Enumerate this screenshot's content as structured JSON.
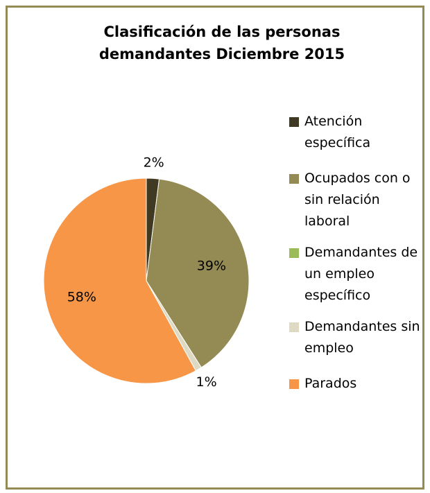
{
  "chart_data": {
    "type": "pie",
    "title": "Clasificación de las personas demandantes Diciembre 2015",
    "categories": [
      "Atención específica",
      "Ocupados con o sin relación laboral",
      "Demandantes de un empleo específico",
      "Demandantes sin empleo",
      "Parados"
    ],
    "values": [
      2,
      39,
      0,
      1,
      58
    ],
    "value_labels": [
      "2%",
      "39%",
      null,
      "1%",
      "58%"
    ],
    "colors": [
      "#403a22",
      "#948a54",
      "#9bbb59",
      "#ddd9c3",
      "#f79646"
    ],
    "legend": "right"
  }
}
